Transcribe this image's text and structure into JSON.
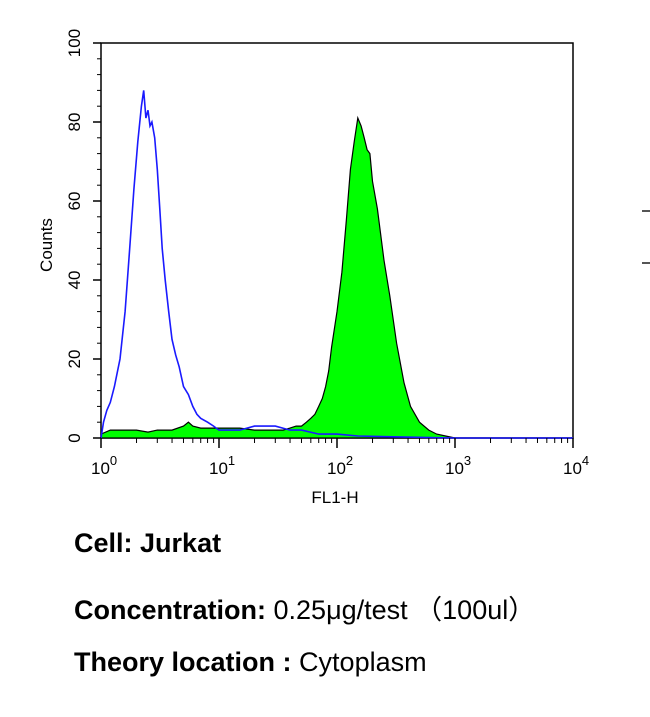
{
  "chart_data": {
    "type": "area",
    "xlabel": "FL1-H",
    "ylabel": "Counts",
    "xscale": "log",
    "xlim": [
      1,
      10000
    ],
    "ylim": [
      0,
      100
    ],
    "x_ticks": [
      1,
      10,
      100,
      1000,
      10000
    ],
    "x_tick_labels": [
      {
        "base": "10",
        "exp": "0"
      },
      {
        "base": "10",
        "exp": "1"
      },
      {
        "base": "10",
        "exp": "2"
      },
      {
        "base": "10",
        "exp": "3"
      },
      {
        "base": "10",
        "exp": "4"
      }
    ],
    "y_ticks": [
      0,
      20,
      40,
      60,
      80,
      100
    ],
    "y_tick_labels": [
      "0",
      "20",
      "40",
      "60",
      "80",
      "100"
    ],
    "grid": false,
    "legend": "none",
    "series": [
      {
        "style": "outline",
        "color": "#1a1aff",
        "x": [
          1.0,
          1.05,
          1.12,
          1.2,
          1.3,
          1.45,
          1.6,
          1.75,
          1.9,
          2.05,
          2.2,
          2.3,
          2.4,
          2.5,
          2.6,
          2.7,
          2.85,
          3.0,
          3.15,
          3.3,
          3.5,
          3.75,
          4.0,
          4.3,
          4.6,
          5.0,
          5.5,
          6.0,
          6.5,
          7.0,
          8.0,
          9.0,
          10.0,
          12.0,
          15.0,
          20.0,
          25.0,
          30.0,
          40.0,
          50.0,
          70.0,
          100.0,
          150.0,
          300.0,
          1000.0,
          10000.0
        ],
        "y": [
          0,
          4,
          7,
          9,
          13,
          20,
          32,
          48,
          63,
          75,
          84,
          88,
          81,
          83,
          79,
          80,
          76,
          68,
          58,
          48,
          40,
          32,
          25,
          21,
          18,
          13,
          11,
          8,
          6,
          5,
          4,
          3,
          2,
          2,
          2,
          3,
          3,
          3,
          2,
          2,
          1,
          1,
          0.5,
          0.3,
          0,
          0
        ]
      },
      {
        "style": "filled",
        "color": "#00ff00",
        "stroke": "#000000",
        "x": [
          1.0,
          1.2,
          1.5,
          2.0,
          2.5,
          3.0,
          4.0,
          5.0,
          5.5,
          6.0,
          7.0,
          8.0,
          10.0,
          15.0,
          20.0,
          25.0,
          30.0,
          35.0,
          40.0,
          45.0,
          50.0,
          55.0,
          60.0,
          65.0,
          70.0,
          75.0,
          80.0,
          85.0,
          90.0,
          100.0,
          110.0,
          120.0,
          130.0,
          140.0,
          150.0,
          160.0,
          170.0,
          180.0,
          190.0,
          200.0,
          220.0,
          250.0,
          280.0,
          320.0,
          370.0,
          420.0,
          500.0,
          600.0,
          700.0,
          1000.0,
          10000.0
        ],
        "y": [
          1,
          2,
          2,
          2,
          1.5,
          2,
          2,
          3,
          4,
          3,
          2.5,
          2.5,
          2.5,
          2.5,
          2,
          2,
          2,
          2,
          2.5,
          3,
          3,
          4,
          5,
          6,
          8,
          10,
          13,
          17,
          23,
          32,
          42,
          55,
          68,
          75,
          81,
          79,
          76,
          73,
          72,
          65,
          58,
          45,
          36,
          24,
          14,
          8,
          4,
          2,
          1,
          0,
          0
        ]
      }
    ]
  },
  "captions": {
    "cell_label": "Cell:",
    "cell_value": "Jurkat",
    "concentration_label": "Concentration:",
    "concentration_value": "0.25μg/test （100ul）",
    "theory_label": "Theory location :",
    "theory_value": "Cytoplasm"
  },
  "colors": {
    "outline_series": "#1a1aff",
    "filled_series": "#00ff00",
    "axis": "#000000"
  }
}
